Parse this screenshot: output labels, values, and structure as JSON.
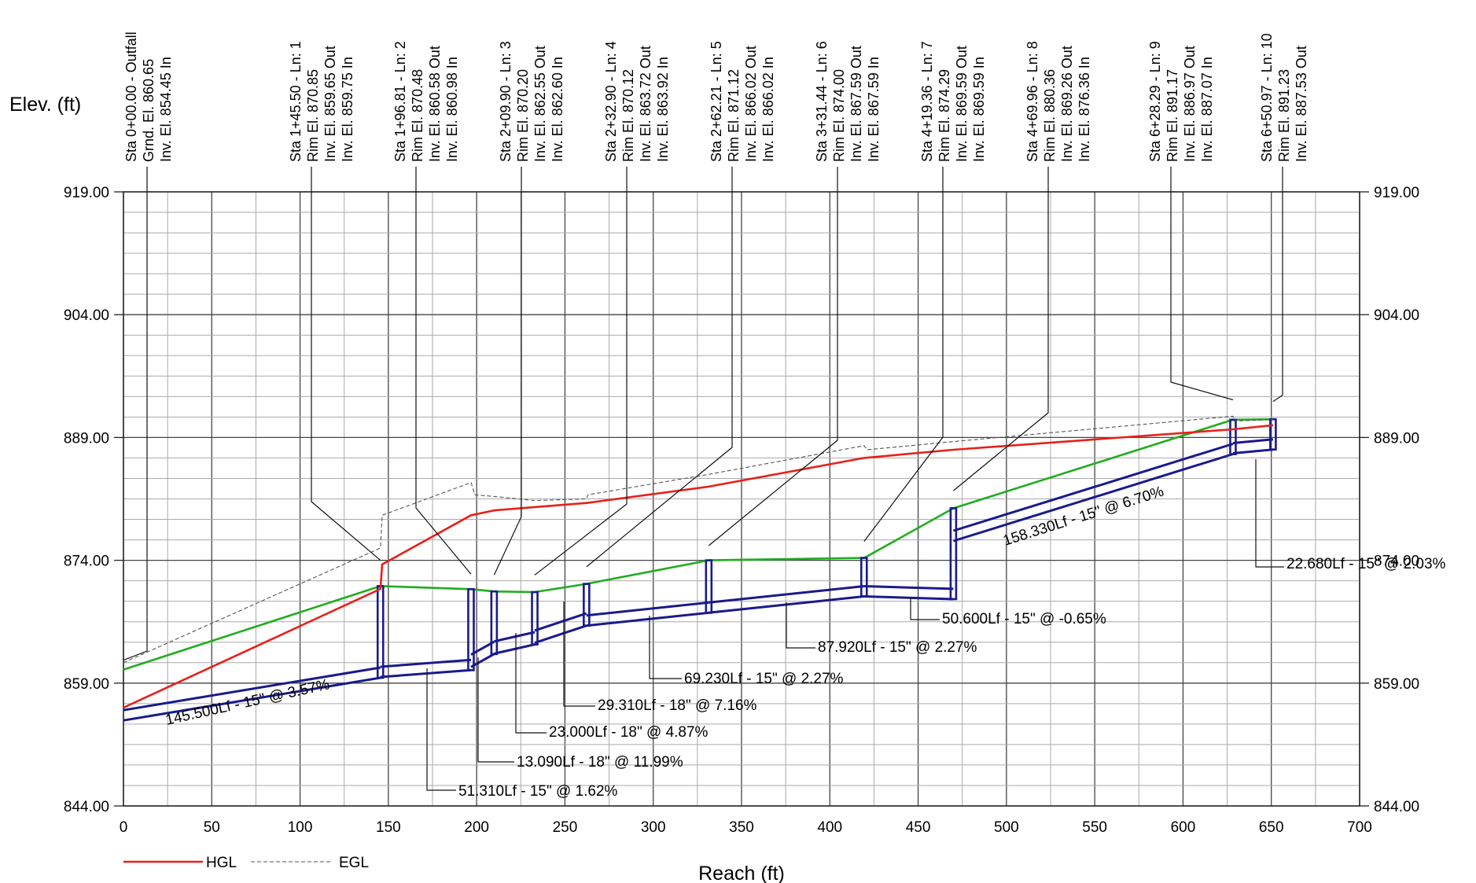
{
  "chart_data": {
    "type": "line",
    "title": "",
    "xlabel": "Reach (ft)",
    "ylabel": "Elev. (ft)",
    "xlim": [
      0,
      700
    ],
    "ylim": [
      844,
      919
    ],
    "x_ticks": [
      "0",
      "50",
      "100",
      "150",
      "200",
      "250",
      "300",
      "350",
      "400",
      "450",
      "500",
      "550",
      "600",
      "650",
      "700"
    ],
    "y_ticks": [
      "844.00",
      "859.00",
      "874.00",
      "889.00",
      "904.00",
      "919.00"
    ],
    "grid": true,
    "legend_position": "bottom-left",
    "colors": {
      "hgl": "#e8201a",
      "egl": "#555555",
      "ground": "#1fad1f",
      "pipe": "#1a1a8c"
    },
    "series": [
      {
        "name": "HGL",
        "color": "#e8201a",
        "x": [
          0,
          145.5,
          146.5,
          196.8,
          209.9,
          232.9,
          262.2,
          331.4,
          419.4,
          470,
          628.3,
          651
        ],
        "y": [
          856.0,
          870.5,
          873.5,
          879.5,
          880.1,
          880.5,
          881.0,
          883.0,
          886.5,
          887.5,
          890.0,
          890.5
        ]
      },
      {
        "name": "EGL",
        "color": "#555555",
        "x": [
          0,
          145.5,
          146.5,
          196.8,
          199,
          209.9,
          232.9,
          262.2,
          263,
          331.4,
          419.4,
          421,
          470,
          628.3,
          629,
          651
        ],
        "y": [
          861.5,
          875.5,
          879.5,
          883.5,
          882.0,
          881.8,
          881.3,
          881.5,
          882.0,
          884.5,
          888.0,
          887.5,
          888.5,
          891.6,
          891.0,
          891.2
        ]
      }
    ],
    "ground": {
      "x": [
        0,
        145.5,
        196.8,
        209.9,
        232.9,
        262.2,
        331.4,
        419.4,
        470,
        628.3,
        651
      ],
      "y": [
        860.65,
        870.85,
        870.48,
        870.2,
        870.12,
        871.12,
        874.0,
        874.29,
        880.36,
        891.17,
        891.23
      ]
    },
    "structures": [
      {
        "x": 0,
        "rim": null,
        "inv": 854.45
      },
      {
        "x": 145.5,
        "rim": 870.85,
        "inv": 859.65
      },
      {
        "x": 196.81,
        "rim": 870.48,
        "inv": 860.58
      },
      {
        "x": 209.9,
        "rim": 870.2,
        "inv": 862.55
      },
      {
        "x": 232.9,
        "rim": 870.12,
        "inv": 863.72
      },
      {
        "x": 262.21,
        "rim": 871.12,
        "inv": 866.02
      },
      {
        "x": 331.44,
        "rim": 874.0,
        "inv": 867.59
      },
      {
        "x": 419.36,
        "rim": 874.29,
        "inv": 869.59
      },
      {
        "x": 469.96,
        "rim": 880.36,
        "inv": 869.26
      },
      {
        "x": 628.29,
        "rim": 891.17,
        "inv": 886.97
      },
      {
        "x": 650.97,
        "rim": 891.23,
        "inv": 887.53
      }
    ],
    "pipes": [
      {
        "x1": 0,
        "inv1": 854.45,
        "x2": 145.5,
        "inv2": 859.65,
        "dia_ft": 1.25,
        "label": "145.500Lf - 15\" @ 3.57%"
      },
      {
        "x1": 145.5,
        "inv1": 859.75,
        "x2": 196.81,
        "inv2": 860.58,
        "dia_ft": 1.25,
        "label": "51.310Lf - 15\" @ 1.62%"
      },
      {
        "x1": 196.81,
        "inv1": 860.98,
        "x2": 209.9,
        "inv2": 862.55,
        "dia_ft": 1.5,
        "label": "13.090Lf - 18\" @ 11.99%"
      },
      {
        "x1": 209.9,
        "inv1": 862.6,
        "x2": 232.9,
        "inv2": 863.72,
        "dia_ft": 1.5,
        "label": "23.000Lf - 18\" @ 4.87%"
      },
      {
        "x1": 232.9,
        "inv1": 863.92,
        "x2": 262.21,
        "inv2": 866.02,
        "dia_ft": 1.5,
        "label": "29.310Lf - 18\" @ 7.16%"
      },
      {
        "x1": 262.21,
        "inv1": 866.02,
        "x2": 331.44,
        "inv2": 867.59,
        "dia_ft": 1.25,
        "label": "69.230Lf - 15\" @ 2.27%"
      },
      {
        "x1": 331.44,
        "inv1": 867.59,
        "x2": 419.36,
        "inv2": 869.59,
        "dia_ft": 1.25,
        "label": "87.920Lf - 15\" @ 2.27%"
      },
      {
        "x1": 419.36,
        "inv1": 869.59,
        "x2": 469.96,
        "inv2": 869.26,
        "dia_ft": 1.25,
        "label": "50.600Lf - 15\" @ -0.65%"
      },
      {
        "x1": 469.96,
        "inv1": 876.36,
        "x2": 628.29,
        "inv2": 886.97,
        "dia_ft": 1.25,
        "label": "158.330Lf - 15\" @ 6.70%"
      },
      {
        "x1": 628.29,
        "inv1": 887.07,
        "x2": 650.97,
        "inv2": 887.53,
        "dia_ft": 1.25,
        "label": "22.680Lf - 15\" @ 2.03%"
      }
    ],
    "station_labels": [
      [
        "Sta 0+00.00 - Outfall",
        "Grnd. El. 860.65",
        "Inv. El. 854.45 In"
      ],
      [
        "Sta 1+45.50 - Ln: 1",
        "Rim El. 870.85",
        "Inv. El. 859.65 Out",
        "Inv. El. 859.75 In"
      ],
      [
        "Sta 1+96.81 - Ln: 2",
        "Rim El. 870.48",
        "Inv. El. 860.58 Out",
        "Inv. El. 860.98 In"
      ],
      [
        "Sta 2+09.90 - Ln: 3",
        "Rim El. 870.20",
        "Inv. El. 862.55 Out",
        "Inv. El. 862.60 In"
      ],
      [
        "Sta 2+32.90 - Ln: 4",
        "Rim El. 870.12",
        "Inv. El. 863.72 Out",
        "Inv. El. 863.92 In"
      ],
      [
        "Sta 2+62.21 - Ln: 5",
        "Rim El. 871.12",
        "Inv. El. 866.02 Out",
        "Inv. El. 866.02 In"
      ],
      [
        "Sta 3+31.44 - Ln: 6",
        "Rim El. 874.00",
        "Inv. El. 867.59 Out",
        "Inv. El. 867.59 In"
      ],
      [
        "Sta 4+19.36 - Ln: 7",
        "Rim El. 874.29",
        "Inv. El. 869.59 Out",
        "Inv. El. 869.59 In"
      ],
      [
        "Sta 4+69.96 - Ln: 8",
        "Rim El. 880.36",
        "Inv. El. 869.26 Out",
        "Inv. El. 876.36 In"
      ],
      [
        "Sta 6+28.29 - Ln: 9",
        "Rim El. 891.17",
        "Inv. El. 886.97 Out",
        "Inv. El. 887.07 In"
      ],
      [
        "Sta 6+50.97 - Ln: 10",
        "Rim El. 891.23",
        "Inv. El. 887.53 Out"
      ]
    ]
  }
}
